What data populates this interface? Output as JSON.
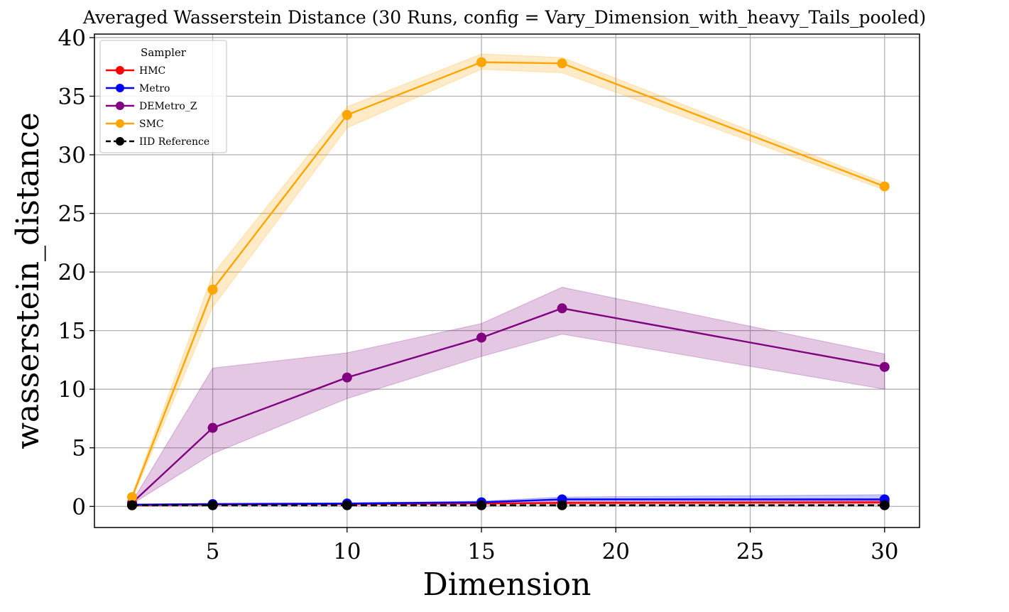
{
  "chart_data": {
    "type": "line",
    "title": "Averaged Wasserstein Distance (30 Runs, config = Vary_Dimension_with_heavy_Tails_pooled)",
    "xlabel": "Dimension",
    "ylabel": "wasserstein_distance",
    "xlim": [
      0.6,
      31.3
    ],
    "ylim": [
      -1.8,
      40.3
    ],
    "xticks": [
      5,
      10,
      15,
      20,
      25,
      30
    ],
    "yticks": [
      0,
      5,
      10,
      15,
      20,
      25,
      30,
      35,
      40
    ],
    "grid": true,
    "legend": {
      "title": "Sampler",
      "position": "top-left"
    },
    "x": [
      2,
      5,
      10,
      15,
      18,
      30
    ],
    "series": [
      {
        "name": "HMC",
        "color": "#ff0000",
        "style": "solid",
        "values": [
          0.1,
          0.15,
          0.2,
          0.25,
          0.3,
          0.35
        ],
        "lower": [
          0.05,
          0.1,
          0.15,
          0.2,
          0.2,
          0.2
        ],
        "upper": [
          0.15,
          0.2,
          0.25,
          0.3,
          0.4,
          0.5
        ]
      },
      {
        "name": "Metro",
        "color": "#0000ff",
        "style": "solid",
        "values": [
          0.15,
          0.2,
          0.25,
          0.35,
          0.6,
          0.6
        ],
        "lower": [
          0.1,
          0.15,
          0.2,
          0.25,
          0.3,
          0.3
        ],
        "upper": [
          0.2,
          0.25,
          0.3,
          0.45,
          0.8,
          1.0
        ]
      },
      {
        "name": "DEMetro_Z",
        "color": "#800080",
        "style": "solid",
        "values": [
          0.3,
          6.7,
          11.0,
          14.4,
          16.9,
          11.9
        ],
        "lower": [
          0.2,
          4.5,
          9.2,
          12.8,
          14.7,
          10.0
        ],
        "upper": [
          0.4,
          11.8,
          13.1,
          15.6,
          18.7,
          13.0
        ]
      },
      {
        "name": "SMC",
        "color": "#ffa500",
        "style": "solid",
        "values": [
          0.8,
          18.5,
          33.4,
          37.9,
          37.8,
          27.3
        ],
        "lower": [
          0.6,
          17.0,
          32.3,
          37.3,
          37.0,
          27.0
        ],
        "upper": [
          1.0,
          19.8,
          34.1,
          38.6,
          38.3,
          27.6
        ]
      },
      {
        "name": "IID Reference",
        "color": "#000000",
        "style": "dashed",
        "values": [
          0.1,
          0.1,
          0.1,
          0.1,
          0.1,
          0.1
        ],
        "lower": [
          0.1,
          0.1,
          0.1,
          0.1,
          0.1,
          0.1
        ],
        "upper": [
          0.1,
          0.1,
          0.1,
          0.1,
          0.1,
          0.1
        ]
      }
    ]
  }
}
